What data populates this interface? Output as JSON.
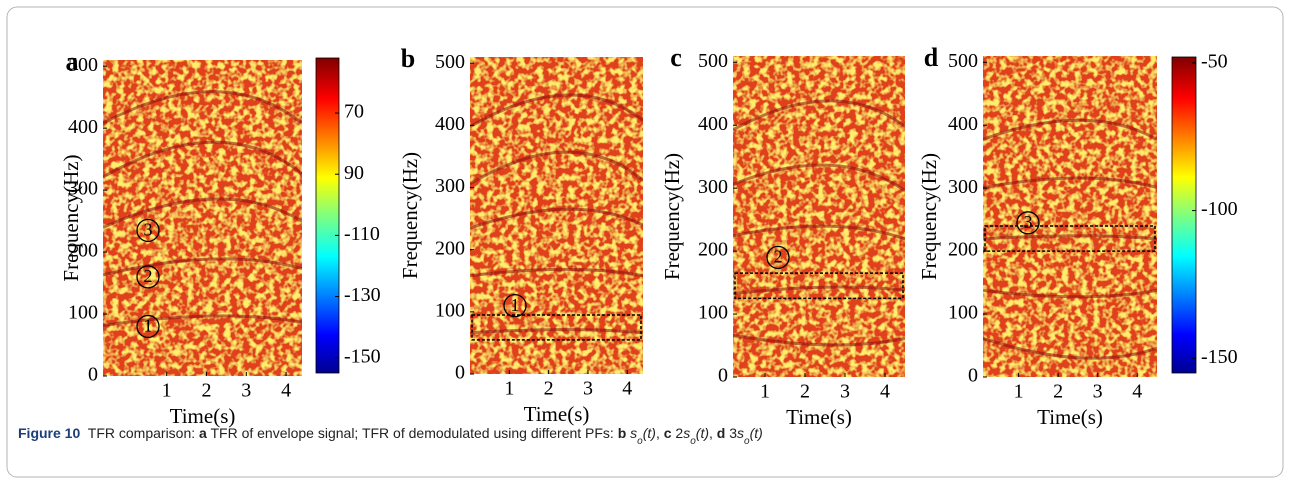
{
  "figure": {
    "panels": [
      {
        "letter": "a",
        "ylabel": "Frequency(Hz)",
        "xlabel": "Time(s)",
        "xlim": [
          -0.6,
          4.4
        ],
        "ylim": [
          0,
          510
        ],
        "xticks": [
          1,
          2,
          3,
          4
        ],
        "yticks": [
          0,
          100,
          200,
          300,
          400,
          500
        ],
        "markers": [
          {
            "label": "1",
            "y": 80
          },
          {
            "label": "2",
            "y": 160
          },
          {
            "label": "3",
            "y": 235
          }
        ],
        "colorbar": {
          "clim": [
            -155,
            -52
          ],
          "ticks": [
            {
              "value": -70,
              "label": "70"
            },
            {
              "value": -90,
              "label": "90"
            },
            -110,
            -130,
            -150
          ]
        }
      },
      {
        "letter": "b",
        "ylabel": "Frequency(Hz)",
        "xlabel": "Time(s)",
        "xlim": [
          0,
          4.4
        ],
        "ylim": [
          0,
          510
        ],
        "xticks": [
          1,
          2,
          3,
          4
        ],
        "yticks": [
          0,
          100,
          200,
          300,
          400,
          500
        ],
        "markers": [
          {
            "label": "1",
            "y": 110
          }
        ],
        "box": [
          55,
          95
        ]
      },
      {
        "letter": "c",
        "ylabel": "Frequency(Hz)",
        "xlabel": "Time(s)",
        "xlim": [
          0.2,
          4.5
        ],
        "ylim": [
          0,
          510
        ],
        "xticks": [
          1,
          2,
          3,
          4
        ],
        "yticks": [
          0,
          100,
          200,
          300,
          400,
          500
        ],
        "markers": [
          {
            "label": "2",
            "y": 190
          }
        ],
        "box": [
          125,
          165
        ]
      },
      {
        "letter": "d",
        "ylabel": "Frequency(Hz)",
        "xlabel": "Time(s)",
        "xlim": [
          0.1,
          4.5
        ],
        "ylim": [
          0,
          510
        ],
        "xticks": [
          1,
          2,
          3,
          4
        ],
        "yticks": [
          0,
          100,
          200,
          300,
          400,
          500
        ],
        "markers": [
          {
            "label": "3",
            "y": 245
          }
        ],
        "box": [
          200,
          240
        ],
        "colorbar": {
          "clim": [
            -155,
            -48
          ],
          "ticks": [
            -50,
            -100,
            -150
          ]
        }
      }
    ],
    "caption": [
      {
        "text": "Figure 10",
        "style": "bold"
      },
      {
        "text": "  TFR comparison: ",
        "style": "normal"
      },
      {
        "text": "a",
        "style": "bold"
      },
      {
        "text": " TFR of envelope signal; TFR of demodulated using different PFs: ",
        "style": "normal"
      },
      {
        "text": "b",
        "style": "bold"
      },
      {
        "text": " s",
        "style": "italic"
      },
      {
        "text": "o",
        "style": "sub"
      },
      {
        "text": "(t)",
        "style": "italic"
      },
      {
        "text": ", ",
        "style": "normal"
      },
      {
        "text": "c",
        "style": "bold"
      },
      {
        "text": " 2",
        "style": "normal"
      },
      {
        "text": "s",
        "style": "italic"
      },
      {
        "text": "o",
        "style": "sub"
      },
      {
        "text": "(t)",
        "style": "italic"
      },
      {
        "text": ", ",
        "style": "normal"
      },
      {
        "text": "d",
        "style": "bold"
      },
      {
        "text": " 3",
        "style": "normal"
      },
      {
        "text": "s",
        "style": "italic"
      },
      {
        "text": "o",
        "style": "sub"
      },
      {
        "text": "(t)",
        "style": "italic"
      }
    ]
  }
}
